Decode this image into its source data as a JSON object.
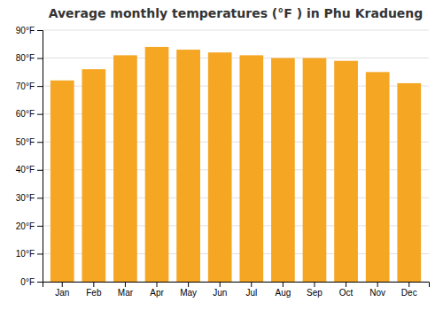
{
  "chart_data": {
    "type": "bar",
    "title": "Average monthly temperatures (°F ) in Phu Kradueng",
    "categories": [
      "Jan",
      "Feb",
      "Mar",
      "Apr",
      "May",
      "Jun",
      "Jul",
      "Aug",
      "Sep",
      "Oct",
      "Nov",
      "Dec"
    ],
    "values": [
      72,
      76,
      81,
      84,
      83,
      82,
      81,
      80,
      80,
      79,
      75,
      71
    ],
    "color": "#F5A623",
    "ylim": [
      0,
      90
    ],
    "yticks": [
      {
        "value": 0,
        "label": "0°F"
      },
      {
        "value": 10,
        "label": "10°F"
      },
      {
        "value": 20,
        "label": "20°F"
      },
      {
        "value": 30,
        "label": "30°F"
      },
      {
        "value": 40,
        "label": "40°F"
      },
      {
        "value": 50,
        "label": "50°F"
      },
      {
        "value": 60,
        "label": "60°F"
      },
      {
        "value": 70,
        "label": "70°F"
      },
      {
        "value": 80,
        "label": "80°F"
      },
      {
        "value": 90,
        "label": "90°F"
      }
    ],
    "grid": true
  }
}
